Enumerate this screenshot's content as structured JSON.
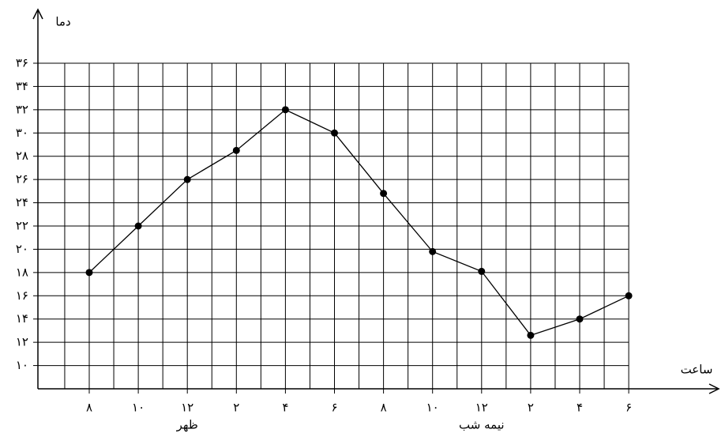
{
  "chart_data": {
    "type": "line",
    "y_label": "دما",
    "x_label": "ساعت",
    "categories": [
      "۸",
      "۱۰",
      "۱۲",
      "۲",
      "۴",
      "۶",
      "۸",
      "۱۰",
      "۱۲",
      "۲",
      "۴",
      "۶"
    ],
    "annotations": [
      "ظهر",
      "نیمه شب"
    ],
    "series": [
      {
        "color": "#000000",
        "values": [
          18,
          22,
          26,
          28.5,
          32,
          30,
          24.8,
          19.8,
          18.1,
          12.6,
          14,
          16
        ]
      }
    ],
    "ylim": [
      8,
      36
    ],
    "yticks": [
      {
        "value": 10,
        "label": "۱۰"
      },
      {
        "value": 12,
        "label": "۱۲"
      },
      {
        "value": 14,
        "label": "۱۴"
      },
      {
        "value": 16,
        "label": "۱۶"
      },
      {
        "value": 18,
        "label": "۱۸"
      },
      {
        "value": 20,
        "label": "۲۰"
      },
      {
        "value": 22,
        "label": "۲۲"
      },
      {
        "value": 24,
        "label": "۲۴"
      },
      {
        "value": 26,
        "label": "۲۶"
      },
      {
        "value": 28,
        "label": "۲۸"
      },
      {
        "value": 30,
        "label": "۳۰"
      },
      {
        "value": 32,
        "label": "۳۲"
      },
      {
        "value": 34,
        "label": "۳۴"
      },
      {
        "value": 36,
        "label": "۳۶"
      }
    ],
    "grid": true
  }
}
